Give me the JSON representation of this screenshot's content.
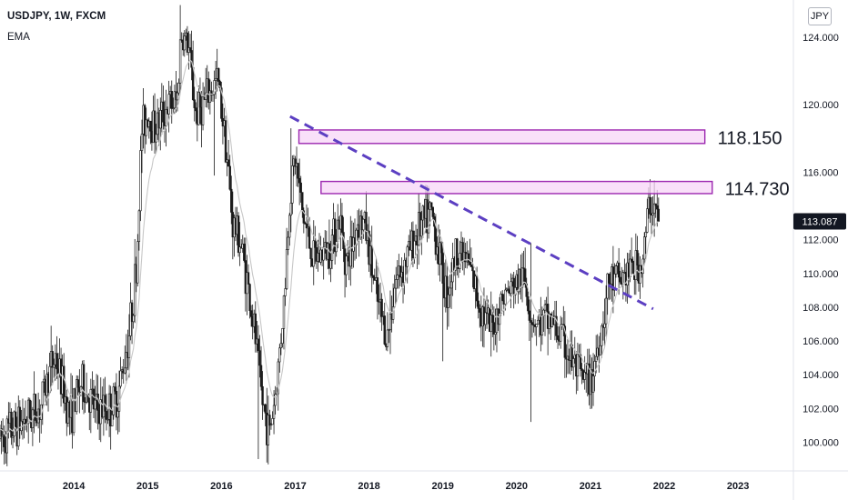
{
  "header": {
    "title": "USDJPY, 1W, FXCM",
    "indicator": "EMA"
  },
  "currency_badge": "JPY",
  "chart_data": {
    "type": "candlestick",
    "symbol": "USDJPY",
    "interval": "1W",
    "source": "FXCM",
    "x_axis": {
      "ticks": [
        "2014",
        "2015",
        "2016",
        "2017",
        "2018",
        "2019",
        "2020",
        "2021",
        "2022",
        "2023"
      ]
    },
    "y_axis": {
      "range": [
        98.3,
        126.2
      ],
      "ticks": [
        "124.000",
        "120.000",
        "116.000",
        "112.000",
        "110.000",
        "108.000",
        "106.000",
        "104.000",
        "102.000",
        "100.000"
      ],
      "tick_values": [
        124,
        120,
        116,
        112,
        110,
        108,
        106,
        104,
        102,
        100
      ]
    },
    "last_price": {
      "label": "113.087",
      "value": 113.087
    },
    "resistance_zones": [
      {
        "label": "118.150",
        "low": 117.7,
        "high": 118.5,
        "from": 2017.05,
        "to": 2022.55,
        "color": "#9c27b0",
        "fill": "#f7d6f7"
      },
      {
        "label": "114.730",
        "low": 114.73,
        "high": 115.45,
        "from": 2017.35,
        "to": 2022.65,
        "color": "#9c27b0",
        "fill": "#f7d6f7"
      }
    ],
    "trendline": {
      "points": [
        [
          2016.93,
          119.3
        ],
        [
          2021.85,
          107.9
        ]
      ],
      "color": "#5c3fc2",
      "style": "dashed"
    },
    "anchor_points": [
      [
        2013.0,
        100.2
      ],
      [
        2013.35,
        101.4
      ],
      [
        2013.55,
        102.1
      ],
      [
        2013.65,
        103.9
      ],
      [
        2013.75,
        105.1
      ],
      [
        2013.95,
        101.5
      ],
      [
        2014.1,
        103.5
      ],
      [
        2014.3,
        101.9
      ],
      [
        2014.5,
        102.0
      ],
      [
        2014.6,
        102.8
      ],
      [
        2014.75,
        106.5
      ],
      [
        2014.85,
        110.4
      ],
      [
        2014.92,
        118.5
      ],
      [
        2015.0,
        119.5
      ],
      [
        2015.1,
        118.6
      ],
      [
        2015.25,
        119.8
      ],
      [
        2015.4,
        120.2
      ],
      [
        2015.45,
        124.2
      ],
      [
        2015.55,
        123.5
      ],
      [
        2015.65,
        119.5
      ],
      [
        2015.75,
        120.0
      ],
      [
        2015.95,
        121.5
      ],
      [
        2016.05,
        118.2
      ],
      [
        2016.15,
        113.0
      ],
      [
        2016.25,
        112.0
      ],
      [
        2016.35,
        109.5
      ],
      [
        2016.45,
        106.5
      ],
      [
        2016.55,
        102.5
      ],
      [
        2016.65,
        100.5
      ],
      [
        2016.75,
        103.5
      ],
      [
        2016.85,
        108.5
      ],
      [
        2016.93,
        114.8
      ],
      [
        2017.0,
        116.8
      ],
      [
        2017.1,
        113.5
      ],
      [
        2017.25,
        110.8
      ],
      [
        2017.45,
        111.5
      ],
      [
        2017.6,
        113.2
      ],
      [
        2017.7,
        110.5
      ],
      [
        2017.85,
        113.2
      ],
      [
        2017.95,
        112.8
      ],
      [
        2018.1,
        108.5
      ],
      [
        2018.25,
        106.2
      ],
      [
        2018.35,
        109.5
      ],
      [
        2018.5,
        110.8
      ],
      [
        2018.65,
        112.5
      ],
      [
        2018.85,
        113.5
      ],
      [
        2018.95,
        111.2
      ],
      [
        2019.05,
        108.8
      ],
      [
        2019.2,
        111.5
      ],
      [
        2019.35,
        110.5
      ],
      [
        2019.5,
        108.2
      ],
      [
        2019.65,
        106.5
      ],
      [
        2019.8,
        108.5
      ],
      [
        2019.95,
        109.2
      ],
      [
        2020.1,
        109.8
      ],
      [
        2020.2,
        107.5
      ],
      [
        2020.3,
        107.0
      ],
      [
        2020.45,
        107.3
      ],
      [
        2020.6,
        106.2
      ],
      [
        2020.75,
        104.8
      ],
      [
        2020.9,
        103.6
      ],
      [
        2021.0,
        103.5
      ],
      [
        2021.15,
        106.8
      ],
      [
        2021.25,
        109.5
      ],
      [
        2021.4,
        109.6
      ],
      [
        2021.55,
        110.2
      ],
      [
        2021.7,
        110.5
      ],
      [
        2021.8,
        114.2
      ],
      [
        2021.87,
        114.0
      ],
      [
        2021.93,
        113.087
      ]
    ]
  }
}
